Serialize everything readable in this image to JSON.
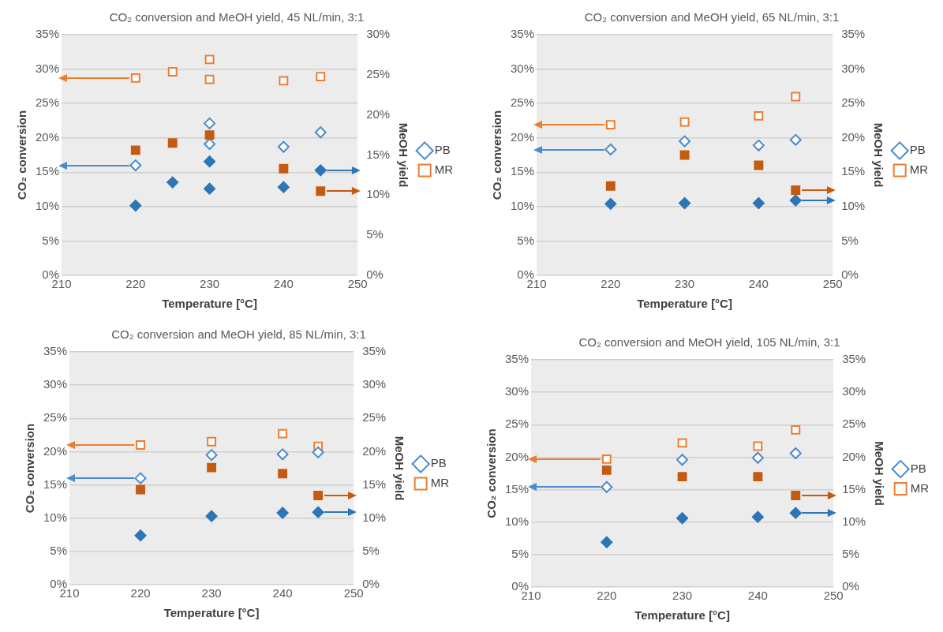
{
  "chart_data": [
    {
      "type": "scatter",
      "title": "CO₂ conversion and MeOH yield, 45 NL/min, 3:1",
      "xlabel": "Temperature [°C]",
      "ylabel": "CO₂ conversion",
      "y2label": "MeOH yield",
      "xlim": [
        210,
        250
      ],
      "xticks": [
        210,
        220,
        230,
        240,
        250
      ],
      "ylim": [
        0,
        35
      ],
      "yticks": [
        {
          "value": 0,
          "label": "0%"
        },
        {
          "value": 5,
          "label": "5%"
        },
        {
          "value": 10,
          "label": "10%"
        },
        {
          "value": 15,
          "label": "15%"
        },
        {
          "value": 20,
          "label": "20%"
        },
        {
          "value": 25,
          "label": "25%"
        },
        {
          "value": 30,
          "label": "30%"
        },
        {
          "value": 35,
          "label": "35%"
        }
      ],
      "y2lim": [
        0,
        30
      ],
      "y2ticks": [
        {
          "value": 0,
          "label": "0%"
        },
        {
          "value": 5,
          "label": "5%"
        },
        {
          "value": 10,
          "label": "10%"
        },
        {
          "value": 15,
          "label": "15%"
        },
        {
          "value": 20,
          "label": "20%"
        },
        {
          "value": 25,
          "label": "25%"
        },
        {
          "value": 30,
          "label": "30%"
        }
      ],
      "grid": "y",
      "legend": "right",
      "series": [
        {
          "name": "PB",
          "color": "#4a8bd0",
          "marker": "diamond",
          "x": [
            220,
            230,
            230,
            240,
            245
          ],
          "values": [
            16.0,
            22.1,
            19.1,
            18.7,
            20.8
          ]
        },
        {
          "name": "MR",
          "color": "#ed7d31",
          "marker": "square",
          "x": [
            220,
            225,
            230,
            230,
            240,
            245
          ],
          "values": [
            28.7,
            29.6,
            31.4,
            28.5,
            28.3,
            28.9
          ]
        },
        {
          "color": "#2e75b6",
          "marker": "diamond",
          "axis": "y2",
          "x": [
            220,
            225,
            230,
            230,
            240,
            245
          ],
          "values": [
            8.7,
            11.6,
            14.2,
            10.8,
            11.0,
            13.1
          ]
        },
        {
          "color": "#c55a11",
          "marker": "square",
          "axis": "y2",
          "x": [
            220,
            225,
            230,
            240,
            245
          ],
          "values": [
            15.6,
            16.5,
            17.5,
            13.3,
            10.5
          ]
        }
      ]
    },
    {
      "type": "scatter",
      "title": "CO₂ conversion and MeOH yield, 65 NL/min, 3:1",
      "xlabel": "Temperature [°C]",
      "ylabel": "CO₂ conversion",
      "y2label": "MeOH yield",
      "xlim": [
        210,
        250
      ],
      "xticks": [
        210,
        220,
        230,
        240,
        250
      ],
      "ylim": [
        0,
        35
      ],
      "yticks": [
        {
          "value": 0,
          "label": "0%"
        },
        {
          "value": 5,
          "label": "5%"
        },
        {
          "value": 10,
          "label": "10%"
        },
        {
          "value": 15,
          "label": "15%"
        },
        {
          "value": 20,
          "label": "20%"
        },
        {
          "value": 25,
          "label": "25%"
        },
        {
          "value": 30,
          "label": "30%"
        },
        {
          "value": 35,
          "label": "35%"
        }
      ],
      "y2lim": [
        0,
        35
      ],
      "y2ticks": [
        {
          "value": 0,
          "label": "0%"
        },
        {
          "value": 5,
          "label": "5%"
        },
        {
          "value": 10,
          "label": "10%"
        },
        {
          "value": 15,
          "label": "15%"
        },
        {
          "value": 20,
          "label": "20%"
        },
        {
          "value": 25,
          "label": "25%"
        },
        {
          "value": 30,
          "label": "30%"
        },
        {
          "value": 35,
          "label": "35%"
        }
      ],
      "grid": "y",
      "legend": "right",
      "series": [
        {
          "name": "PB",
          "color": "#4a8bd0",
          "marker": "diamond",
          "x": [
            220,
            230,
            240,
            245
          ],
          "values": [
            18.3,
            19.5,
            18.9,
            19.7
          ]
        },
        {
          "name": "MR",
          "color": "#ed7d31",
          "marker": "square",
          "x": [
            220,
            230,
            240,
            245
          ],
          "values": [
            21.9,
            22.3,
            23.2,
            26.0
          ]
        },
        {
          "color": "#2e75b6",
          "marker": "diamond",
          "axis": "y2",
          "x": [
            220,
            230,
            240,
            245
          ],
          "values": [
            10.4,
            10.5,
            10.5,
            10.9
          ]
        },
        {
          "color": "#c55a11",
          "marker": "square",
          "axis": "y2",
          "x": [
            220,
            230,
            240,
            245
          ],
          "values": [
            13.0,
            17.5,
            16.0,
            12.4
          ]
        }
      ]
    },
    {
      "type": "scatter",
      "title": "CO₂ conversion and MeOH yield, 85 NL/min, 3:1",
      "xlabel": "Temperature [°C]",
      "ylabel": "CO₂ conversion",
      "y2label": "MeOH yield",
      "xlim": [
        210,
        250
      ],
      "xticks": [
        210,
        220,
        230,
        240,
        250
      ],
      "ylim": [
        0,
        35
      ],
      "yticks": [
        {
          "value": 0,
          "label": "0%"
        },
        {
          "value": 5,
          "label": "5%"
        },
        {
          "value": 10,
          "label": "10%"
        },
        {
          "value": 15,
          "label": "15%"
        },
        {
          "value": 20,
          "label": "20%"
        },
        {
          "value": 25,
          "label": "25%"
        },
        {
          "value": 30,
          "label": "30%"
        },
        {
          "value": 35,
          "label": "35%"
        }
      ],
      "y2lim": [
        0,
        35
      ],
      "y2ticks": [
        {
          "value": 0,
          "label": "0%"
        },
        {
          "value": 5,
          "label": "5%"
        },
        {
          "value": 10,
          "label": "10%"
        },
        {
          "value": 15,
          "label": "15%"
        },
        {
          "value": 20,
          "label": "20%"
        },
        {
          "value": 25,
          "label": "25%"
        },
        {
          "value": 30,
          "label": "30%"
        },
        {
          "value": 35,
          "label": "35%"
        }
      ],
      "grid": "y",
      "legend": "right",
      "series": [
        {
          "name": "PB",
          "color": "#4a8bd0",
          "marker": "diamond",
          "x": [
            220,
            230,
            240,
            245
          ],
          "values": [
            16.0,
            19.5,
            19.6,
            19.9
          ]
        },
        {
          "name": "MR",
          "color": "#ed7d31",
          "marker": "square",
          "x": [
            220,
            230,
            240,
            245
          ],
          "values": [
            21.0,
            21.5,
            22.7,
            20.8
          ]
        },
        {
          "color": "#2e75b6",
          "marker": "diamond",
          "axis": "y2",
          "x": [
            220,
            230,
            240,
            245
          ],
          "values": [
            7.4,
            10.3,
            10.8,
            10.9
          ]
        },
        {
          "color": "#c55a11",
          "marker": "square",
          "axis": "y2",
          "x": [
            220,
            230,
            240,
            245
          ],
          "values": [
            14.3,
            17.6,
            16.7,
            13.4
          ]
        }
      ]
    },
    {
      "type": "scatter",
      "title": "CO₂ conversion and MeOH yield, 105 NL/min, 3:1",
      "xlabel": "Temperature [°C]",
      "ylabel": "CO₂ conversion",
      "y2label": "MeOH yield",
      "xlim": [
        210,
        250
      ],
      "xticks": [
        210,
        220,
        230,
        240,
        250
      ],
      "ylim": [
        0,
        35
      ],
      "yticks": [
        {
          "value": 0,
          "label": "0%"
        },
        {
          "value": 5,
          "label": "5%"
        },
        {
          "value": 10,
          "label": "10%"
        },
        {
          "value": 15,
          "label": "15%"
        },
        {
          "value": 20,
          "label": "20%"
        },
        {
          "value": 25,
          "label": "25%"
        },
        {
          "value": 30,
          "label": "30%"
        },
        {
          "value": 35,
          "label": "35%"
        }
      ],
      "y2lim": [
        0,
        35
      ],
      "y2ticks": [
        {
          "value": 0,
          "label": "0%"
        },
        {
          "value": 5,
          "label": "5%"
        },
        {
          "value": 10,
          "label": "10%"
        },
        {
          "value": 15,
          "label": "15%"
        },
        {
          "value": 20,
          "label": "20%"
        },
        {
          "value": 25,
          "label": "25%"
        },
        {
          "value": 30,
          "label": "30%"
        },
        {
          "value": 35,
          "label": "35%"
        }
      ],
      "grid": "y",
      "legend": "right",
      "series": [
        {
          "name": "PB",
          "color": "#4a8bd0",
          "marker": "diamond",
          "x": [
            220,
            230,
            240,
            245
          ],
          "values": [
            15.4,
            19.6,
            19.9,
            20.6
          ]
        },
        {
          "name": "MR",
          "color": "#ed7d31",
          "marker": "square",
          "x": [
            220,
            230,
            240,
            245
          ],
          "values": [
            19.7,
            22.2,
            21.7,
            24.2
          ]
        },
        {
          "color": "#2e75b6",
          "marker": "diamond",
          "axis": "y2",
          "x": [
            220,
            230,
            240,
            245
          ],
          "values": [
            6.9,
            10.6,
            10.8,
            11.4
          ]
        },
        {
          "color": "#c55a11",
          "marker": "square",
          "axis": "y2",
          "x": [
            220,
            230,
            240,
            245
          ],
          "values": [
            18.0,
            17.0,
            17.0,
            14.1
          ]
        }
      ]
    }
  ]
}
